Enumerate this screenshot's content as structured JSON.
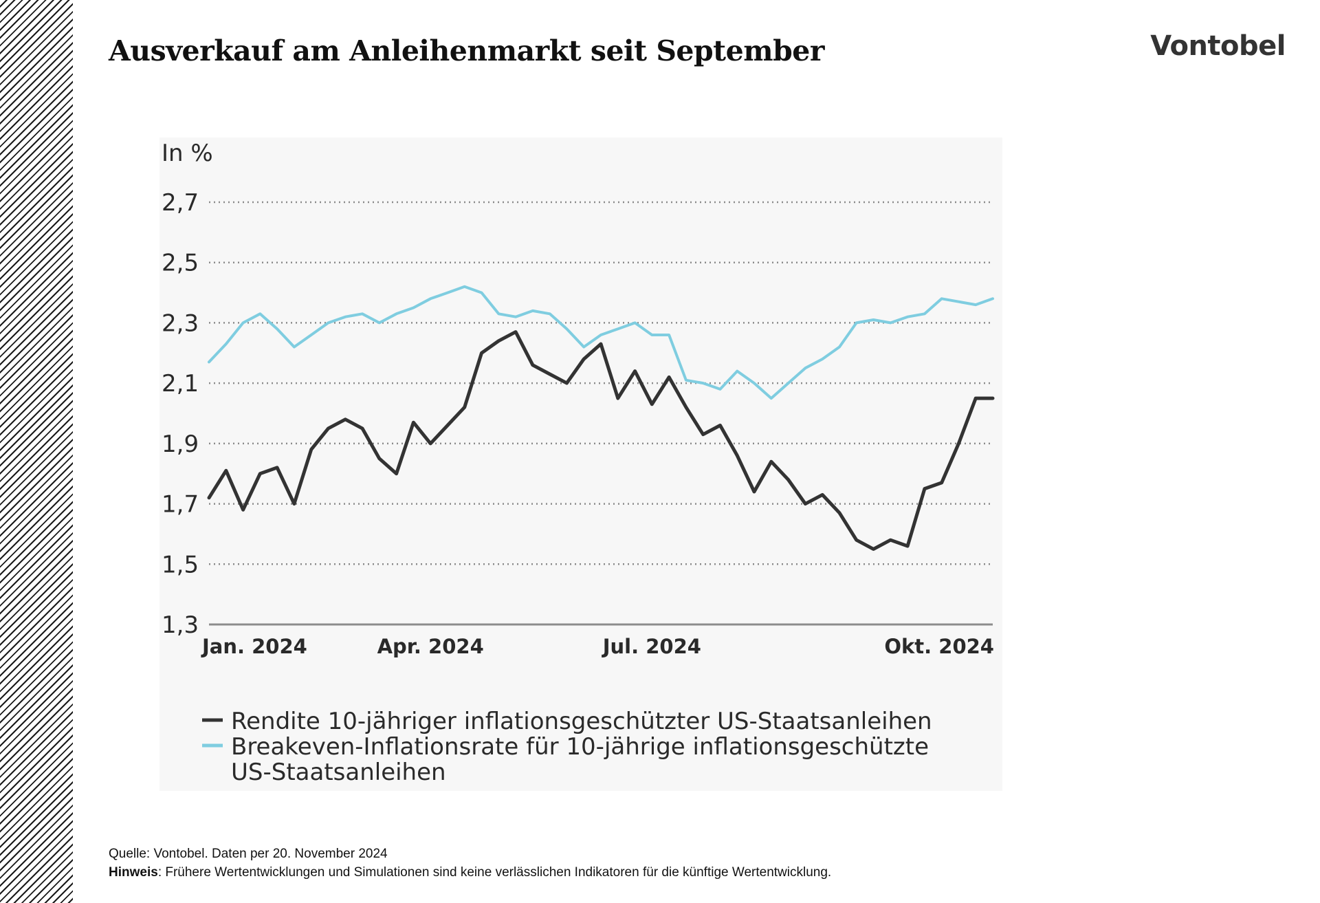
{
  "slide": {
    "title": "Ausverkauf am Anleihenmarkt seit September",
    "logo": "Vontobel",
    "source": "Quelle: Vontobel. Daten per 20. November 2024",
    "note_label": "Hinweis",
    "note_text": ": Frühere Wertentwicklungen und Simulationen sind keine verlässlichen Indikatoren für die künftige Wertentwicklung."
  },
  "colors": {
    "real_yield": "#333333",
    "breakeven": "#7fcde0",
    "grid": "#8a8a8a"
  },
  "chart_data": {
    "type": "line",
    "title": "",
    "ylabel": "In %",
    "xlabel": "",
    "ylim": [
      1.3,
      2.7
    ],
    "yticks": [
      1.3,
      1.5,
      1.7,
      1.9,
      2.1,
      2.3,
      2.5,
      2.7
    ],
    "ytick_labels": [
      "1,3",
      "1,5",
      "1,7",
      "1,9",
      "2,1",
      "2,3",
      "2,5",
      "2,7"
    ],
    "xlim": [
      0,
      46
    ],
    "xticks": [
      {
        "x": 0,
        "label": "Jan. 2024"
      },
      {
        "x": 13,
        "label": "Apr. 2024"
      },
      {
        "x": 26,
        "label": "Jul. 2024"
      },
      {
        "x": 39,
        "label": "Okt. 2024"
      }
    ],
    "x": [
      0,
      1,
      2,
      3,
      4,
      5,
      6,
      7,
      8,
      9,
      10,
      11,
      12,
      13,
      14,
      15,
      16,
      17,
      18,
      19,
      20,
      21,
      22,
      23,
      24,
      25,
      26,
      27,
      28,
      29,
      30,
      31,
      32,
      33,
      34,
      35,
      36,
      37,
      38,
      39,
      40,
      41,
      42,
      43,
      44,
      45,
      46
    ],
    "series": [
      {
        "name": "Rendite 10-jähriger inflationsgeschützter US-Staatsanleihen",
        "color": "#333333",
        "values": [
          1.72,
          1.81,
          1.68,
          1.8,
          1.82,
          1.7,
          1.88,
          1.95,
          1.98,
          1.95,
          1.85,
          1.8,
          1.97,
          1.9,
          1.96,
          2.02,
          2.2,
          2.24,
          2.27,
          2.16,
          2.13,
          2.1,
          2.18,
          2.23,
          2.05,
          2.14,
          2.03,
          2.12,
          2.02,
          1.93,
          1.96,
          1.86,
          1.74,
          1.84,
          1.78,
          1.7,
          1.73,
          1.67,
          1.58,
          1.55,
          1.58,
          1.56,
          1.75,
          1.77,
          1.9,
          2.05,
          2.05
        ]
      },
      {
        "name": "Breakeven-Inflationsrate für 10-jährige inflationsgeschützte US-Staatsanleihen",
        "color": "#7fcde0",
        "values": [
          2.17,
          2.23,
          2.3,
          2.33,
          2.28,
          2.22,
          2.26,
          2.3,
          2.32,
          2.33,
          2.3,
          2.33,
          2.35,
          2.38,
          2.4,
          2.42,
          2.4,
          2.33,
          2.32,
          2.34,
          2.33,
          2.28,
          2.22,
          2.26,
          2.28,
          2.3,
          2.26,
          2.26,
          2.11,
          2.1,
          2.08,
          2.14,
          2.1,
          2.05,
          2.1,
          2.15,
          2.18,
          2.22,
          2.3,
          2.31,
          2.3,
          2.32,
          2.33,
          2.38,
          2.37,
          2.36,
          2.38
        ]
      }
    ],
    "legend": [
      "Rendite 10-jähriger inflationsgeschützter US-Staatsanleihen",
      "Breakeven-Inflationsrate für 10-jährige inflationsgeschützte",
      "US-Staatsanleihen"
    ],
    "legend_position": "bottom-left",
    "grid": true
  }
}
